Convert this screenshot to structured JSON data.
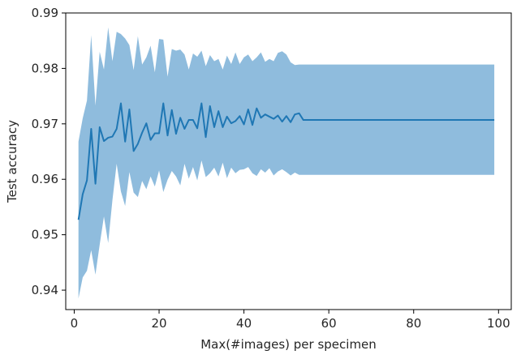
{
  "chart_data": {
    "type": "line",
    "title": "",
    "xlabel": "Max(#images) per specimen",
    "ylabel": "Test accuracy",
    "xlim": [
      -2,
      103
    ],
    "ylim": [
      0.9365,
      0.99
    ],
    "xticks": [
      0,
      20,
      40,
      60,
      80,
      100
    ],
    "yticks": [
      0.94,
      0.95,
      0.96,
      0.97,
      0.98,
      0.99
    ],
    "xtick_labels": [
      "0",
      "20",
      "40",
      "60",
      "80",
      "100"
    ],
    "ytick_labels": [
      "0.94",
      "0.95",
      "0.96",
      "0.97",
      "0.98",
      "0.99"
    ],
    "grid": false,
    "legend": null,
    "colors": {
      "line": "#1f77b4",
      "band": "#8fbcdd",
      "axes": "#000000"
    },
    "series": [
      {
        "x": [
          1,
          2,
          3,
          4,
          5,
          6,
          7,
          8,
          9,
          10,
          11,
          12,
          13,
          14,
          15,
          16,
          17,
          18,
          19,
          20,
          21,
          22,
          23,
          24,
          25,
          26,
          27,
          28,
          29,
          30,
          31,
          32,
          33,
          34,
          35,
          36,
          37,
          38,
          39,
          40,
          41,
          42,
          43,
          44,
          45,
          46,
          47,
          48,
          49,
          50,
          51,
          52,
          53,
          54,
          55,
          56,
          57,
          58,
          59,
          60,
          61,
          62,
          63,
          64,
          65,
          66,
          67,
          68,
          69,
          70,
          71,
          72,
          73,
          74,
          75,
          76,
          77,
          78,
          79,
          80,
          81,
          82,
          83,
          84,
          85,
          86,
          87,
          88,
          89,
          90,
          91,
          92,
          93,
          94,
          95,
          96,
          97,
          98,
          99
        ],
        "y": [
          0.9527,
          0.9573,
          0.9598,
          0.9691,
          0.9592,
          0.9694,
          0.9669,
          0.9675,
          0.9677,
          0.9691,
          0.9737,
          0.9668,
          0.9726,
          0.9651,
          0.9664,
          0.9684,
          0.9701,
          0.9671,
          0.9683,
          0.9683,
          0.9737,
          0.9679,
          0.9725,
          0.9682,
          0.9711,
          0.9691,
          0.9707,
          0.9707,
          0.9692,
          0.9737,
          0.9676,
          0.9732,
          0.9694,
          0.9723,
          0.9694,
          0.9713,
          0.9701,
          0.9705,
          0.9714,
          0.9699,
          0.9726,
          0.9698,
          0.9728,
          0.9711,
          0.9717,
          0.9713,
          0.9709,
          0.9715,
          0.9704,
          0.9714,
          0.9703,
          0.9717,
          0.9719,
          0.9707,
          0.9707,
          0.9707,
          0.9707,
          0.9707,
          0.9707,
          0.9707,
          0.9707,
          0.9707,
          0.9707,
          0.9707,
          0.9707,
          0.9707,
          0.9707,
          0.9707,
          0.9707,
          0.9707,
          0.9707,
          0.9707,
          0.9707,
          0.9707,
          0.9707,
          0.9707,
          0.9707,
          0.9707,
          0.9707,
          0.9707,
          0.9707,
          0.9707,
          0.9707,
          0.9707,
          0.9707,
          0.9707,
          0.9707,
          0.9707,
          0.9707,
          0.9707,
          0.9707,
          0.9707,
          0.9707,
          0.9707,
          0.9707,
          0.9707,
          0.9707,
          0.9707,
          0.9707
        ],
        "lower": [
          0.9385,
          0.9423,
          0.9435,
          0.9472,
          0.9428,
          0.9482,
          0.9533,
          0.9485,
          0.9562,
          0.9628,
          0.9578,
          0.9552,
          0.9613,
          0.9576,
          0.9568,
          0.9597,
          0.9582,
          0.9605,
          0.9587,
          0.9616,
          0.9577,
          0.9599,
          0.9615,
          0.9605,
          0.9589,
          0.9628,
          0.9601,
          0.9622,
          0.9598,
          0.9634,
          0.9604,
          0.9611,
          0.9621,
          0.9605,
          0.963,
          0.9602,
          0.9621,
          0.9611,
          0.9617,
          0.9618,
          0.9622,
          0.9611,
          0.9606,
          0.9618,
          0.9612,
          0.962,
          0.9607,
          0.9614,
          0.9618,
          0.9613,
          0.9607,
          0.9612,
          0.9608,
          0.9608,
          0.9608,
          0.9608,
          0.9608,
          0.9608,
          0.9608,
          0.9608,
          0.9608,
          0.9608,
          0.9608,
          0.9608,
          0.9608,
          0.9608,
          0.9608,
          0.9608,
          0.9608,
          0.9608,
          0.9608,
          0.9608,
          0.9608,
          0.9608,
          0.9608,
          0.9608,
          0.9608,
          0.9608,
          0.9608,
          0.9608,
          0.9608,
          0.9608,
          0.9608,
          0.9608,
          0.9608,
          0.9608,
          0.9608,
          0.9608,
          0.9608,
          0.9608,
          0.9608,
          0.9608,
          0.9608,
          0.9608,
          0.9608,
          0.9608,
          0.9608,
          0.9608,
          0.9608
        ],
        "upper": [
          0.9668,
          0.971,
          0.9742,
          0.986,
          0.9733,
          0.983,
          0.9798,
          0.9874,
          0.9813,
          0.9866,
          0.9862,
          0.9854,
          0.9842,
          0.9797,
          0.9858,
          0.9807,
          0.982,
          0.9841,
          0.9793,
          0.9853,
          0.9852,
          0.9785,
          0.9835,
          0.9832,
          0.9834,
          0.9825,
          0.9798,
          0.9827,
          0.9821,
          0.9832,
          0.9804,
          0.9824,
          0.9813,
          0.9817,
          0.9798,
          0.9823,
          0.9808,
          0.9829,
          0.9808,
          0.982,
          0.9825,
          0.9813,
          0.982,
          0.9829,
          0.9812,
          0.9817,
          0.9813,
          0.9828,
          0.9831,
          0.9825,
          0.9811,
          0.9806,
          0.9807,
          0.9807,
          0.9807,
          0.9807,
          0.9807,
          0.9807,
          0.9807,
          0.9807,
          0.9807,
          0.9807,
          0.9807,
          0.9807,
          0.9807,
          0.9807,
          0.9807,
          0.9807,
          0.9807,
          0.9807,
          0.9807,
          0.9807,
          0.9807,
          0.9807,
          0.9807,
          0.9807,
          0.9807,
          0.9807,
          0.9807,
          0.9807,
          0.9807,
          0.9807,
          0.9807,
          0.9807,
          0.9807,
          0.9807,
          0.9807,
          0.9807,
          0.9807,
          0.9807,
          0.9807,
          0.9807,
          0.9807,
          0.9807,
          0.9807,
          0.9807,
          0.9807,
          0.9807,
          0.9807
        ]
      }
    ]
  }
}
